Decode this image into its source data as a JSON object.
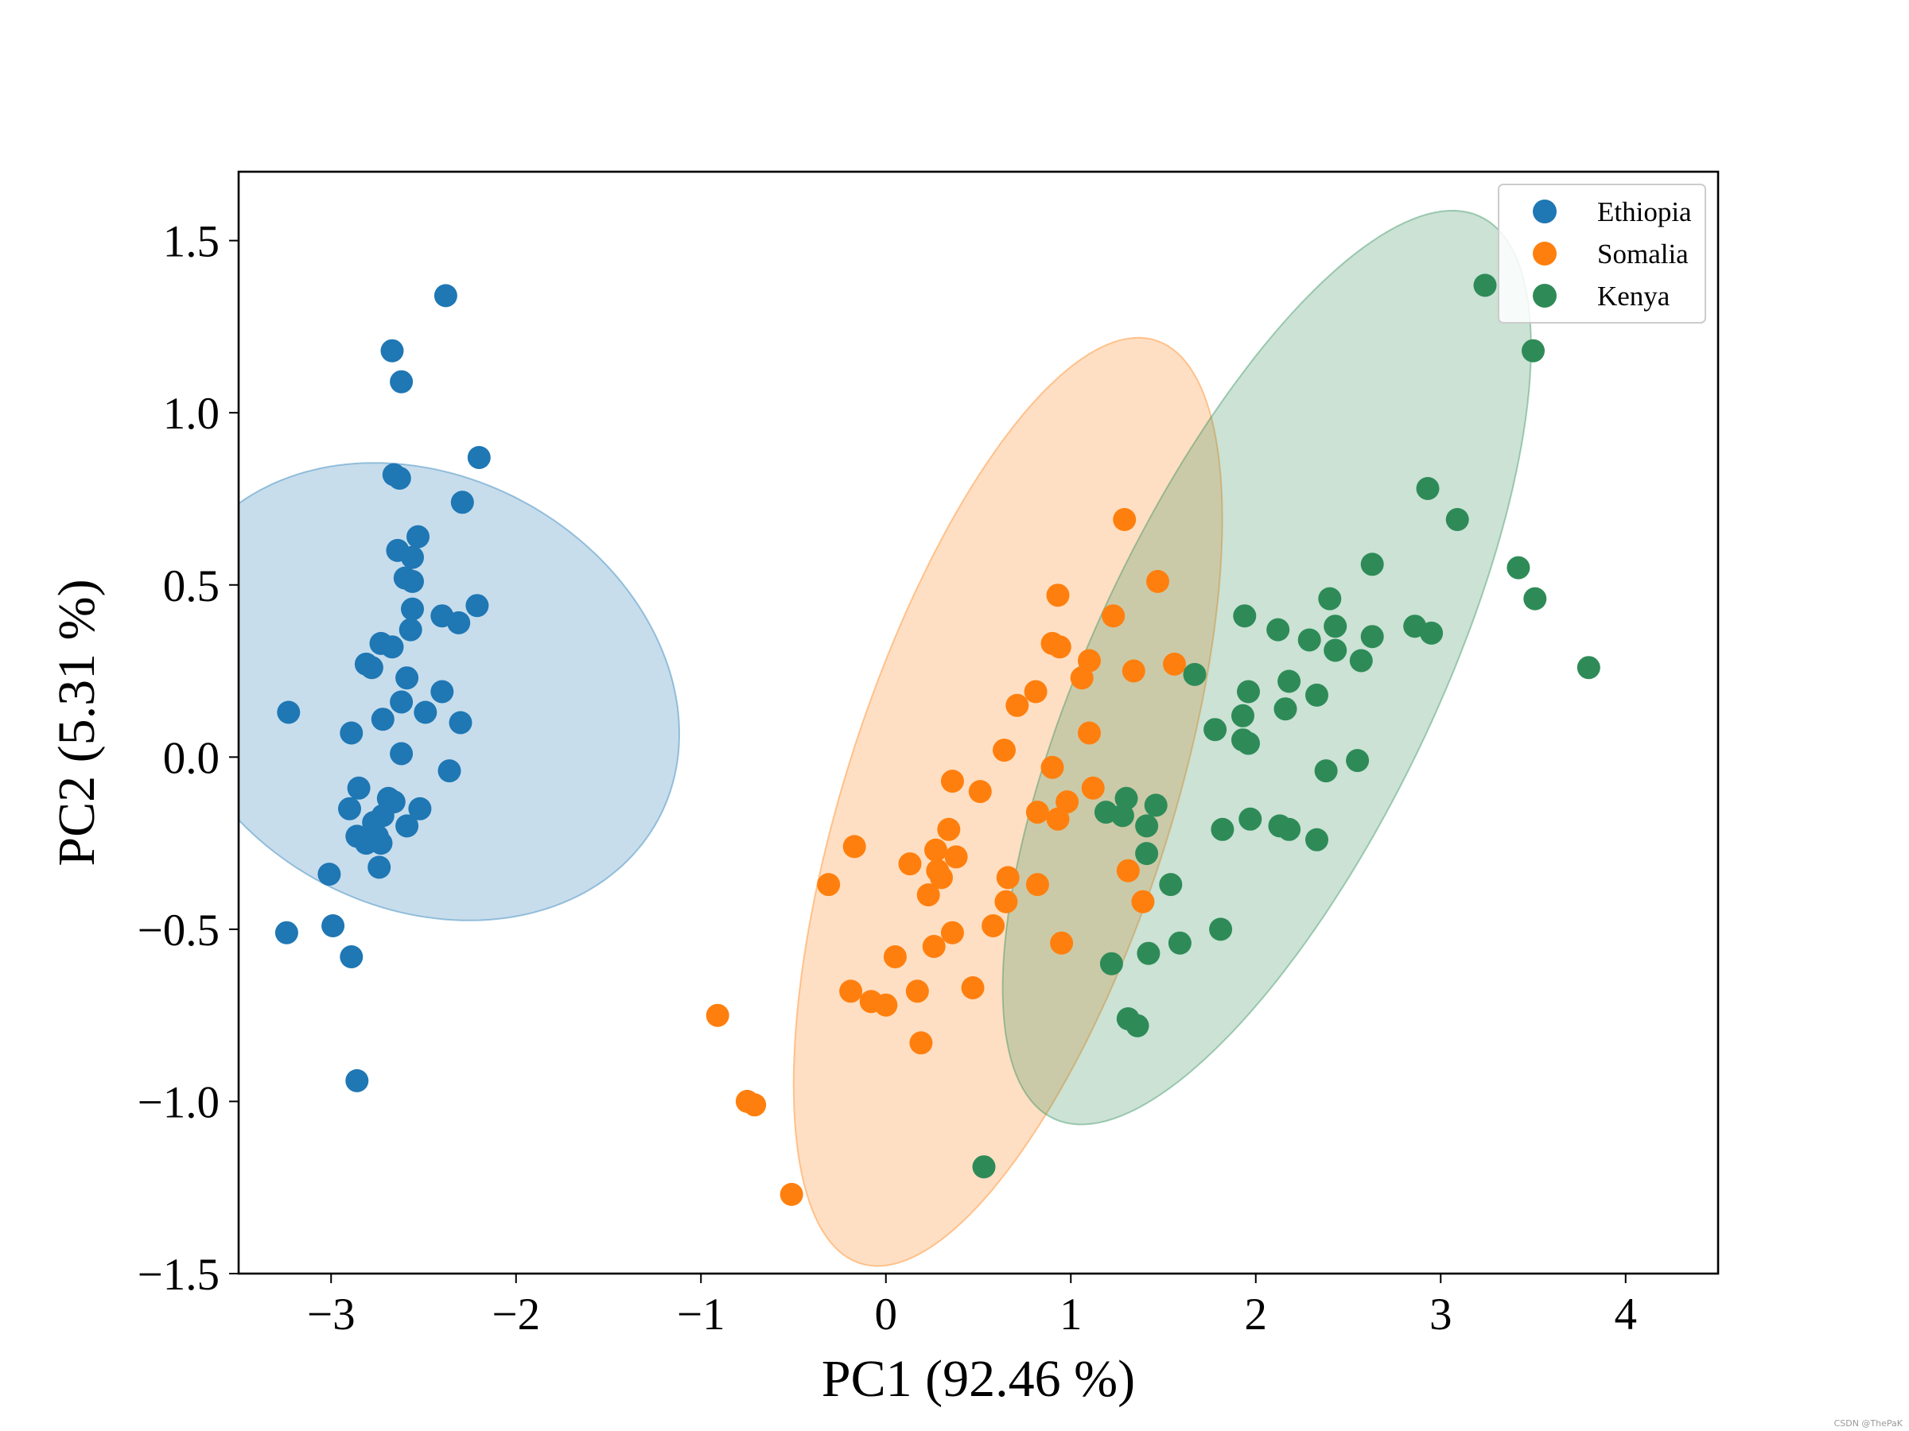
{
  "watermark": "CSDN @ThePaK",
  "chart_data": {
    "type": "scatter",
    "title": "",
    "xlabel": "PC1 (92.46 %)",
    "ylabel": "PC2 (5.31 %)",
    "xlim": [
      -3.5,
      4.5
    ],
    "ylim": [
      -1.5,
      1.7
    ],
    "xticks": [
      -3,
      -2,
      -1,
      0,
      1,
      2,
      3,
      4
    ],
    "xtick_labels": [
      "−3",
      "−2",
      "−1",
      "0",
      "1",
      "2",
      "3",
      "4"
    ],
    "yticks": [
      -1.5,
      -1.0,
      -0.5,
      0.0,
      0.5,
      1.0,
      1.5
    ],
    "ytick_labels": [
      "−1.5",
      "−1.0",
      "−0.5",
      "0.0",
      "0.5",
      "1.0",
      "1.5"
    ],
    "grid": false,
    "legend_position": "top-right",
    "series": [
      {
        "name": "Ethiopia",
        "color": "#1f77b4",
        "ellipse": {
          "center": [
            -2.51,
            0.19
          ],
          "width": 1.3,
          "height": 2.8,
          "angle_deg": 83.6
        },
        "points": [
          [
            -2.38,
            1.34
          ],
          [
            -2.67,
            1.18
          ],
          [
            -2.62,
            1.09
          ],
          [
            -2.2,
            0.87
          ],
          [
            -2.66,
            0.82
          ],
          [
            -2.63,
            0.81
          ],
          [
            -2.29,
            0.74
          ],
          [
            -2.53,
            0.64
          ],
          [
            -2.64,
            0.6
          ],
          [
            -2.56,
            0.58
          ],
          [
            -2.6,
            0.52
          ],
          [
            -2.56,
            0.51
          ],
          [
            -2.56,
            0.43
          ],
          [
            -2.4,
            0.41
          ],
          [
            -2.21,
            0.44
          ],
          [
            -2.31,
            0.39
          ],
          [
            -2.57,
            0.37
          ],
          [
            -2.73,
            0.33
          ],
          [
            -2.67,
            0.32
          ],
          [
            -2.81,
            0.27
          ],
          [
            -2.78,
            0.26
          ],
          [
            -2.59,
            0.23
          ],
          [
            -3.23,
            0.13
          ],
          [
            -2.62,
            0.16
          ],
          [
            -2.4,
            0.19
          ],
          [
            -2.49,
            0.13
          ],
          [
            -2.72,
            0.11
          ],
          [
            -2.3,
            0.1
          ],
          [
            -2.89,
            0.07
          ],
          [
            -2.62,
            0.01
          ],
          [
            -2.36,
            -0.04
          ],
          [
            -2.85,
            -0.09
          ],
          [
            -2.69,
            -0.12
          ],
          [
            -2.66,
            -0.13
          ],
          [
            -2.52,
            -0.15
          ],
          [
            -2.9,
            -0.15
          ],
          [
            -2.72,
            -0.17
          ],
          [
            -2.77,
            -0.19
          ],
          [
            -2.59,
            -0.2
          ],
          [
            -2.86,
            -0.23
          ],
          [
            -2.75,
            -0.23
          ],
          [
            -2.81,
            -0.25
          ],
          [
            -2.73,
            -0.25
          ],
          [
            -2.74,
            -0.32
          ],
          [
            -3.01,
            -0.34
          ],
          [
            -3.24,
            -0.51
          ],
          [
            -2.99,
            -0.49
          ],
          [
            -2.89,
            -0.58
          ],
          [
            -2.86,
            -0.94
          ]
        ]
      },
      {
        "name": "Somalia",
        "color": "#ff7f0e",
        "ellipse": {
          "center": [
            0.66,
            -0.13
          ],
          "width": 3.2,
          "height": 1.55,
          "angle_deg": 52
        },
        "points": [
          [
            1.29,
            0.69
          ],
          [
            1.47,
            0.51
          ],
          [
            0.93,
            0.47
          ],
          [
            1.23,
            0.41
          ],
          [
            0.9,
            0.33
          ],
          [
            0.94,
            0.32
          ],
          [
            1.1,
            0.28
          ],
          [
            1.56,
            0.27
          ],
          [
            1.34,
            0.25
          ],
          [
            1.06,
            0.23
          ],
          [
            0.81,
            0.19
          ],
          [
            0.71,
            0.15
          ],
          [
            1.1,
            0.07
          ],
          [
            0.64,
            0.02
          ],
          [
            0.9,
            -0.03
          ],
          [
            0.36,
            -0.07
          ],
          [
            1.12,
            -0.09
          ],
          [
            0.51,
            -0.1
          ],
          [
            0.98,
            -0.13
          ],
          [
            0.82,
            -0.16
          ],
          [
            0.93,
            -0.18
          ],
          [
            0.34,
            -0.21
          ],
          [
            -0.17,
            -0.26
          ],
          [
            0.27,
            -0.27
          ],
          [
            0.38,
            -0.29
          ],
          [
            0.13,
            -0.31
          ],
          [
            0.28,
            -0.33
          ],
          [
            1.31,
            -0.33
          ],
          [
            0.3,
            -0.35
          ],
          [
            0.66,
            -0.35
          ],
          [
            -0.31,
            -0.37
          ],
          [
            0.82,
            -0.37
          ],
          [
            0.23,
            -0.4
          ],
          [
            0.65,
            -0.42
          ],
          [
            1.39,
            -0.42
          ],
          [
            0.58,
            -0.49
          ],
          [
            0.36,
            -0.51
          ],
          [
            0.95,
            -0.54
          ],
          [
            0.26,
            -0.55
          ],
          [
            0.05,
            -0.58
          ],
          [
            0.47,
            -0.67
          ],
          [
            -0.19,
            -0.68
          ],
          [
            0.17,
            -0.68
          ],
          [
            -0.08,
            -0.71
          ],
          [
            0.0,
            -0.72
          ],
          [
            -0.91,
            -0.75
          ],
          [
            0.19,
            -0.83
          ],
          [
            -0.75,
            -1.0
          ],
          [
            -0.71,
            -1.01
          ],
          [
            -0.51,
            -1.27
          ]
        ]
      },
      {
        "name": "Kenya",
        "color": "#2e8b57",
        "ellipse": {
          "center": [
            2.06,
            0.26
          ],
          "width": 3.6,
          "height": 1.5,
          "angle_deg": 42
        },
        "points": [
          [
            3.24,
            1.37
          ],
          [
            3.5,
            1.18
          ],
          [
            2.93,
            0.78
          ],
          [
            3.09,
            0.69
          ],
          [
            2.63,
            0.56
          ],
          [
            3.42,
            0.55
          ],
          [
            3.51,
            0.46
          ],
          [
            2.4,
            0.46
          ],
          [
            1.94,
            0.41
          ],
          [
            2.12,
            0.37
          ],
          [
            2.43,
            0.38
          ],
          [
            2.86,
            0.38
          ],
          [
            2.95,
            0.36
          ],
          [
            2.29,
            0.34
          ],
          [
            2.63,
            0.35
          ],
          [
            2.43,
            0.31
          ],
          [
            2.57,
            0.28
          ],
          [
            3.8,
            0.26
          ],
          [
            1.67,
            0.24
          ],
          [
            2.18,
            0.22
          ],
          [
            1.96,
            0.19
          ],
          [
            2.33,
            0.18
          ],
          [
            2.16,
            0.14
          ],
          [
            1.93,
            0.12
          ],
          [
            1.78,
            0.08
          ],
          [
            1.93,
            0.05
          ],
          [
            1.96,
            0.04
          ],
          [
            2.55,
            -0.01
          ],
          [
            2.38,
            -0.04
          ],
          [
            1.3,
            -0.12
          ],
          [
            1.46,
            -0.14
          ],
          [
            1.19,
            -0.16
          ],
          [
            1.28,
            -0.17
          ],
          [
            1.97,
            -0.18
          ],
          [
            1.41,
            -0.2
          ],
          [
            2.13,
            -0.2
          ],
          [
            1.82,
            -0.21
          ],
          [
            2.18,
            -0.21
          ],
          [
            2.33,
            -0.24
          ],
          [
            1.41,
            -0.28
          ],
          [
            1.54,
            -0.37
          ],
          [
            1.81,
            -0.5
          ],
          [
            1.59,
            -0.54
          ],
          [
            1.42,
            -0.57
          ],
          [
            1.22,
            -0.6
          ],
          [
            1.31,
            -0.76
          ],
          [
            1.36,
            -0.78
          ],
          [
            0.53,
            -1.19
          ]
        ]
      }
    ]
  }
}
